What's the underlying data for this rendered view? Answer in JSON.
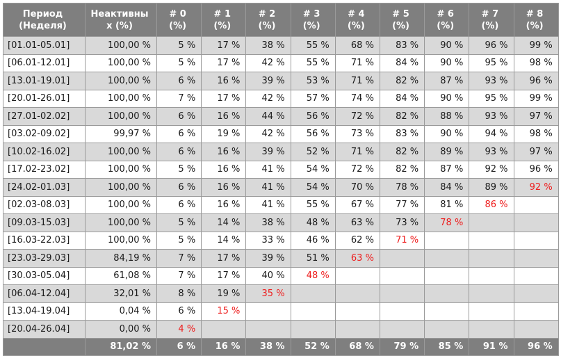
{
  "table": {
    "headers": [
      "Период\n(Неделя)",
      "Неактивны\nх (%)",
      "# 0\n(%)",
      "# 1\n(%)",
      "# 2\n(%)",
      "# 3\n(%)",
      "# 4\n(%)",
      "# 5\n(%)",
      "# 6\n(%)",
      "# 7\n(%)",
      "# 8\n(%)"
    ],
    "rows": [
      {
        "period": "[01.01-05.01]",
        "inactive": "100,00 %",
        "values": [
          "5 %",
          "17 %",
          "38 %",
          "55 %",
          "68 %",
          "83 %",
          "90 %",
          "96 %",
          "99 %"
        ]
      },
      {
        "period": "[06.01-12.01]",
        "inactive": "100,00 %",
        "values": [
          "5 %",
          "17 %",
          "42 %",
          "55 %",
          "71 %",
          "84 %",
          "90 %",
          "95 %",
          "98 %"
        ]
      },
      {
        "period": "[13.01-19.01]",
        "inactive": "100,00 %",
        "values": [
          "6 %",
          "16 %",
          "39 %",
          "53 %",
          "71 %",
          "82 %",
          "87 %",
          "93 %",
          "96 %"
        ]
      },
      {
        "period": "[20.01-26.01]",
        "inactive": "100,00 %",
        "values": [
          "7 %",
          "17 %",
          "42 %",
          "57 %",
          "74 %",
          "84 %",
          "90 %",
          "95 %",
          "99 %"
        ]
      },
      {
        "period": "[27.01-02.02]",
        "inactive": "100,00 %",
        "values": [
          "6 %",
          "16 %",
          "44 %",
          "56 %",
          "72 %",
          "82 %",
          "88 %",
          "93 %",
          "97 %"
        ]
      },
      {
        "period": "[03.02-09.02]",
        "inactive": "99,97 %",
        "values": [
          "6 %",
          "19 %",
          "42 %",
          "56 %",
          "73 %",
          "83 %",
          "90 %",
          "94 %",
          "98 %"
        ]
      },
      {
        "period": "[10.02-16.02]",
        "inactive": "100,00 %",
        "values": [
          "6 %",
          "16 %",
          "39 %",
          "52 %",
          "71 %",
          "82 %",
          "89 %",
          "93 %",
          "97 %"
        ]
      },
      {
        "period": "[17.02-23.02]",
        "inactive": "100,00 %",
        "values": [
          "5 %",
          "16 %",
          "41 %",
          "54 %",
          "72 %",
          "82 %",
          "87 %",
          "92 %",
          "96 %"
        ]
      },
      {
        "period": "[24.02-01.03]",
        "inactive": "100,00 %",
        "values": [
          "6 %",
          "16 %",
          "41 %",
          "54 %",
          "70 %",
          "78 %",
          "84 %",
          "89 %",
          "92 %"
        ]
      },
      {
        "period": "[02.03-08.03]",
        "inactive": "100,00 %",
        "values": [
          "6 %",
          "16 %",
          "41 %",
          "55 %",
          "67 %",
          "77 %",
          "81 %",
          "86 %",
          ""
        ]
      },
      {
        "period": "[09.03-15.03]",
        "inactive": "100,00 %",
        "values": [
          "5 %",
          "14 %",
          "38 %",
          "48 %",
          "63 %",
          "73 %",
          "78 %",
          "",
          ""
        ]
      },
      {
        "period": "[16.03-22.03]",
        "inactive": "100,00 %",
        "values": [
          "5 %",
          "14 %",
          "33 %",
          "46 %",
          "62 %",
          "71 %",
          "",
          "",
          ""
        ]
      },
      {
        "period": "[23.03-29.03]",
        "inactive": "84,19 %",
        "values": [
          "7 %",
          "17 %",
          "39 %",
          "51 %",
          "63 %",
          "",
          "",
          "",
          ""
        ]
      },
      {
        "period": "[30.03-05.04]",
        "inactive": "61,08 %",
        "values": [
          "7 %",
          "17 %",
          "40 %",
          "48 %",
          "",
          "",
          "",
          "",
          ""
        ]
      },
      {
        "period": "[06.04-12.04]",
        "inactive": "32,01 %",
        "values": [
          "8 %",
          "19 %",
          "35 %",
          "",
          "",
          "",
          "",
          "",
          ""
        ]
      },
      {
        "period": "[13.04-19.04]",
        "inactive": "0,04 %",
        "values": [
          "6 %",
          "15 %",
          "",
          "",
          "",
          "",
          "",
          "",
          ""
        ]
      },
      {
        "period": "[20.04-26.04]",
        "inactive": "0,00 %",
        "values": [
          "4 %",
          "",
          "",
          "",
          "",
          "",
          "",
          "",
          ""
        ]
      }
    ],
    "footer": [
      "",
      "81,02 %",
      "6 %",
      "16 %",
      "38 %",
      "52 %",
      "68 %",
      "79 %",
      "85 %",
      "91 %",
      "96 %"
    ]
  },
  "colors": {
    "header_bg": "#7f7f7f",
    "shade_row": "#d9d9d9",
    "last_value_text": "#ee1c1c"
  }
}
